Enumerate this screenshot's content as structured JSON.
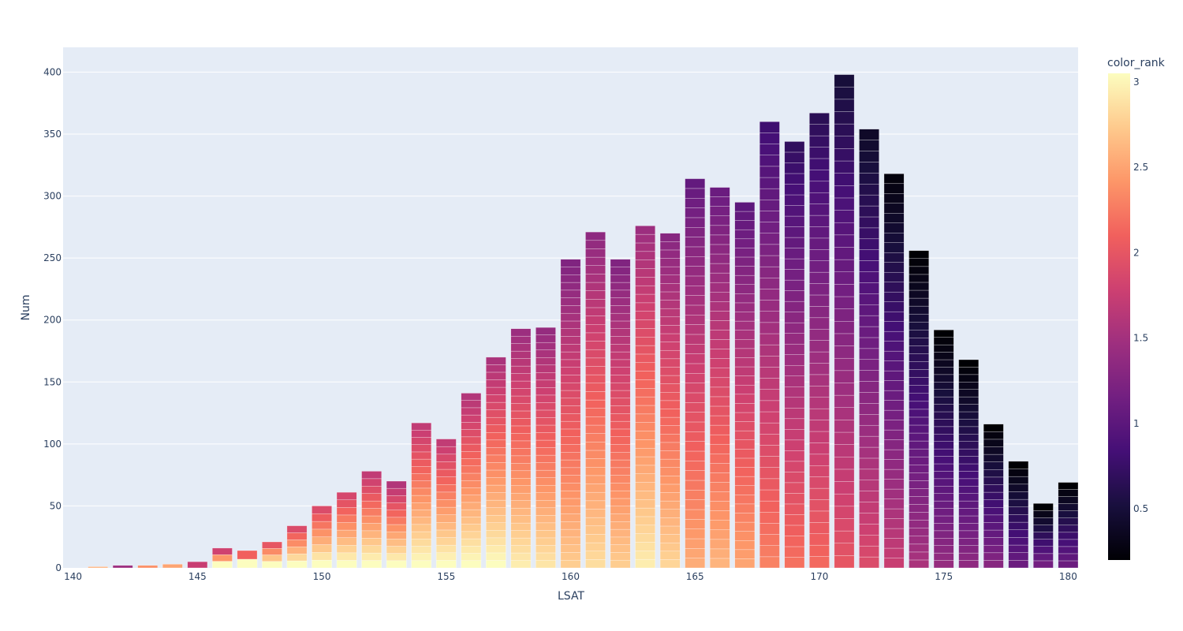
{
  "chart_data": {
    "type": "bar",
    "title": "",
    "xlabel": "LSAT",
    "ylabel": "Num",
    "xlim": [
      139.6,
      180.4
    ],
    "ylim": [
      0,
      420
    ],
    "x_ticks": [
      140,
      145,
      150,
      155,
      160,
      165,
      170,
      175,
      180
    ],
    "y_ticks": [
      0,
      50,
      100,
      150,
      200,
      250,
      300,
      350,
      400
    ],
    "grid": true,
    "background_color": "#e5ecf6",
    "barmode": "stack",
    "colorbar": {
      "title": "color_rank",
      "range": [
        0.2,
        3.05
      ],
      "ticks": [
        0.5,
        1,
        1.5,
        2,
        2.5,
        3
      ],
      "colorscale": [
        "#000004",
        "#180f3d",
        "#440f76",
        "#721f81",
        "#9e2f7f",
        "#cd4071",
        "#f1605d",
        "#fd9668",
        "#feca8d",
        "#fcfdbf"
      ]
    },
    "x": [
      141,
      142,
      143,
      144,
      145,
      146,
      147,
      148,
      149,
      150,
      151,
      152,
      153,
      154,
      155,
      156,
      157,
      158,
      159,
      160,
      161,
      162,
      163,
      164,
      165,
      166,
      167,
      168,
      169,
      170,
      171,
      172,
      173,
      174,
      175,
      176,
      177,
      178,
      179,
      180
    ],
    "values": [
      1,
      2,
      2,
      3,
      5,
      16,
      14,
      21,
      34,
      50,
      61,
      78,
      70,
      117,
      104,
      141,
      170,
      193,
      194,
      249,
      271,
      249,
      276,
      270,
      314,
      307,
      295,
      360,
      344,
      367,
      398,
      354,
      318,
      256,
      192,
      168,
      116,
      86,
      52,
      69
    ],
    "mean_color_rank": [
      3.0,
      1.6,
      2.6,
      2.85,
      1.9,
      2.7,
      3.0,
      2.9,
      2.8,
      2.8,
      2.75,
      2.6,
      2.5,
      2.6,
      2.6,
      2.5,
      2.45,
      2.35,
      2.3,
      2.15,
      2.25,
      2.15,
      2.35,
      2.2,
      1.95,
      2.0,
      1.9,
      1.7,
      1.6,
      1.55,
      1.4,
      1.3,
      1.15,
      0.95,
      0.8,
      0.75,
      0.7,
      0.5,
      0.55,
      0.5
    ]
  }
}
